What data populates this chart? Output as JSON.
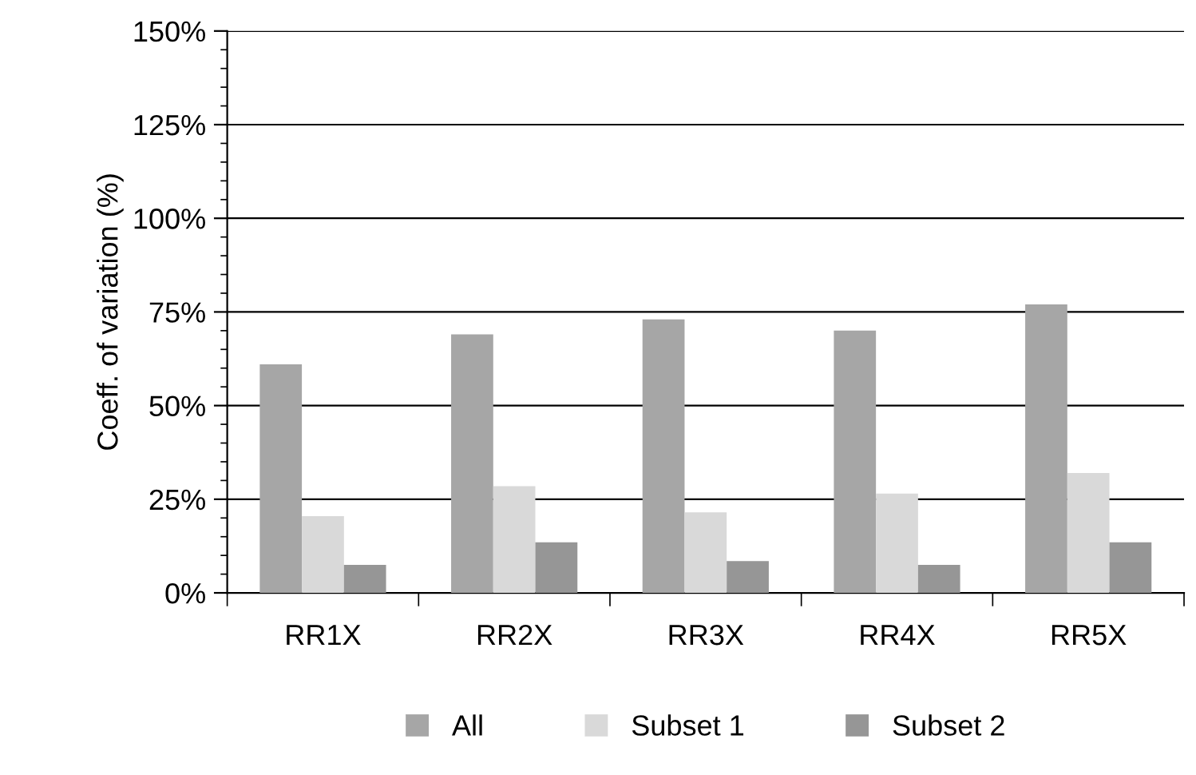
{
  "chart_data": {
    "type": "bar",
    "ylabel": "Coeff. of variation (%)",
    "categories": [
      "RR1X",
      "RR2X",
      "RR3X",
      "RR4X",
      "RR5X"
    ],
    "series": [
      {
        "name": "All",
        "color": "#a6a6a6",
        "values": [
          61,
          69,
          73,
          70,
          77
        ]
      },
      {
        "name": "Subset 1",
        "color": "#d9d9d9",
        "values": [
          20.5,
          28.5,
          21.5,
          26.5,
          32
        ]
      },
      {
        "name": "Subset 2",
        "color": "#969696",
        "values": [
          7.5,
          13.5,
          8.5,
          7.5,
          13.5
        ]
      }
    ],
    "ylim": [
      0,
      150
    ],
    "yticks": [
      {
        "value": 0,
        "label": "0%"
      },
      {
        "value": 25,
        "label": "25%"
      },
      {
        "value": 50,
        "label": "50%"
      },
      {
        "value": 75,
        "label": "75%"
      },
      {
        "value": 100,
        "label": "100%"
      },
      {
        "value": 125,
        "label": "125%"
      },
      {
        "value": 150,
        "label": "150%"
      }
    ],
    "grid": "y",
    "legend": "bottom"
  }
}
